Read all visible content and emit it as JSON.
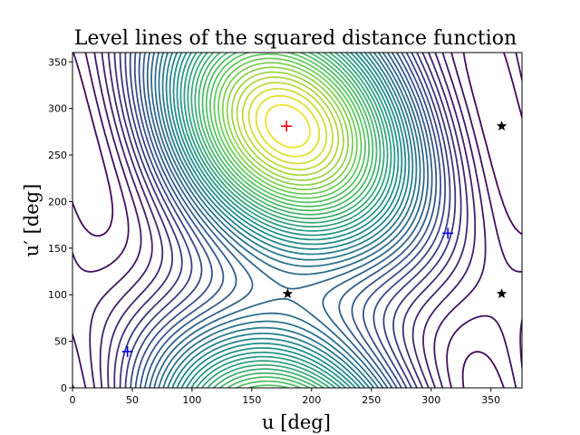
{
  "chart_data": {
    "type": "contour",
    "title": "Level lines of the squared distance function",
    "xlabel": "u [deg]",
    "ylabel": "u′ [deg]",
    "xlim": [
      0,
      376
    ],
    "ylim": [
      0,
      360
    ],
    "x_ticks": [
      0,
      50,
      100,
      150,
      200,
      250,
      300,
      350
    ],
    "y_ticks": [
      0,
      50,
      100,
      150,
      200,
      250,
      300,
      350
    ],
    "grid": false,
    "colormap": "viridis",
    "colormap_stops": [
      "#440154",
      "#3b528b",
      "#21918c",
      "#5ec962",
      "#fde725"
    ],
    "level_count": 40,
    "markers": [
      {
        "name": "maximum",
        "symbol": "plus",
        "color": "#ff0000",
        "x": 179,
        "y": 281
      },
      {
        "name": "minimum",
        "symbol": "plus",
        "color": "#0000ff",
        "x": 46,
        "y": 39
      },
      {
        "name": "minimum",
        "symbol": "plus",
        "color": "#0000ff",
        "x": 314,
        "y": 166
      },
      {
        "name": "saddle",
        "symbol": "star",
        "color": "#000000",
        "x": 180,
        "y": 101
      },
      {
        "name": "saddle",
        "symbol": "star",
        "color": "#000000",
        "x": 359,
        "y": 101
      },
      {
        "name": "saddle",
        "symbol": "star",
        "color": "#000000",
        "x": 359,
        "y": 281
      }
    ]
  }
}
